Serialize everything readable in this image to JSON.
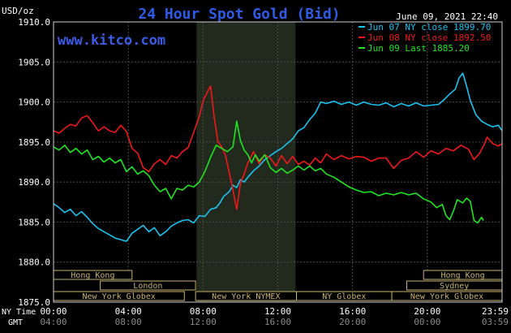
{
  "chart_data": {
    "type": "line",
    "title": "24 Hour Spot Gold (Bid)",
    "unit_label": "USD/oz",
    "date_label": "June 09, 2021 22:40",
    "site": "www.kitco.com",
    "ylim": [
      1875,
      1910
    ],
    "y_ticks": [
      "1910.0",
      "1905.0",
      "1900.0",
      "1895.0",
      "1890.0",
      "1885.0",
      "1880.0",
      "1875.0"
    ],
    "y_tick_values": [
      1910,
      1905,
      1900,
      1895,
      1890,
      1885,
      1880,
      1875
    ],
    "xlim": [
      0,
      24
    ],
    "x_ticks_ny": [
      "00:00",
      "04:00",
      "08:00",
      "12:00",
      "16:00",
      "20:00",
      "23:59"
    ],
    "x_ticks_gmt": [
      "04:00",
      "08:00",
      "12:00",
      "16:00",
      "20:00",
      "00:00",
      "03:59"
    ],
    "x_tick_values": [
      0,
      4,
      8,
      12,
      16,
      20,
      24
    ],
    "ny_time_label": "NY Time",
    "gmt_label": "GMT",
    "highlight_region": [
      7.65,
      12.95
    ],
    "grid": true,
    "legend_position": "top-right",
    "series": [
      {
        "name": "Jun 07 NY close 1899.70",
        "color": "#19c3f2",
        "points": [
          [
            0.0,
            1887.3
          ],
          [
            0.3,
            1886.8
          ],
          [
            0.6,
            1886.2
          ],
          [
            0.9,
            1886.6
          ],
          [
            1.2,
            1885.8
          ],
          [
            1.5,
            1886.3
          ],
          [
            1.8,
            1885.6
          ],
          [
            2.1,
            1884.8
          ],
          [
            2.4,
            1884.2
          ],
          [
            2.7,
            1883.8
          ],
          [
            3.0,
            1883.4
          ],
          [
            3.3,
            1883.0
          ],
          [
            3.6,
            1882.8
          ],
          [
            3.9,
            1882.6
          ],
          [
            4.2,
            1883.6
          ],
          [
            4.5,
            1884.1
          ],
          [
            4.8,
            1884.6
          ],
          [
            5.1,
            1883.8
          ],
          [
            5.4,
            1884.3
          ],
          [
            5.7,
            1883.3
          ],
          [
            6.0,
            1883.8
          ],
          [
            6.3,
            1884.5
          ],
          [
            6.6,
            1884.9
          ],
          [
            6.9,
            1885.2
          ],
          [
            7.2,
            1885.3
          ],
          [
            7.5,
            1884.9
          ],
          [
            7.8,
            1885.8
          ],
          [
            8.1,
            1885.7
          ],
          [
            8.4,
            1886.6
          ],
          [
            8.7,
            1886.8
          ],
          [
            8.9,
            1887.4
          ],
          [
            9.1,
            1888.2
          ],
          [
            9.4,
            1888.8
          ],
          [
            9.6,
            1889.6
          ],
          [
            9.8,
            1889.3
          ],
          [
            10.0,
            1890.3
          ],
          [
            10.2,
            1890.0
          ],
          [
            10.4,
            1890.6
          ],
          [
            10.7,
            1891.4
          ],
          [
            11.0,
            1892.0
          ],
          [
            11.3,
            1892.8
          ],
          [
            11.6,
            1893.3
          ],
          [
            11.9,
            1893.8
          ],
          [
            12.2,
            1894.2
          ],
          [
            12.5,
            1894.8
          ],
          [
            12.8,
            1895.4
          ],
          [
            13.1,
            1896.4
          ],
          [
            13.4,
            1896.8
          ],
          [
            13.7,
            1897.8
          ],
          [
            14.0,
            1898.6
          ],
          [
            14.3,
            1900.0
          ],
          [
            14.6,
            1899.8
          ],
          [
            15.0,
            1900.1
          ],
          [
            15.4,
            1899.7
          ],
          [
            15.8,
            1900.0
          ],
          [
            16.2,
            1899.6
          ],
          [
            16.6,
            1900.0
          ],
          [
            17.0,
            1899.7
          ],
          [
            17.4,
            1899.6
          ],
          [
            17.8,
            1899.9
          ],
          [
            18.2,
            1899.4
          ],
          [
            18.6,
            1899.8
          ],
          [
            19.0,
            1899.5
          ],
          [
            19.4,
            1899.9
          ],
          [
            19.8,
            1899.5
          ],
          [
            20.2,
            1899.6
          ],
          [
            20.6,
            1899.7
          ],
          [
            20.9,
            1900.3
          ],
          [
            21.2,
            1901.0
          ],
          [
            21.5,
            1901.6
          ],
          [
            21.7,
            1903.0
          ],
          [
            21.9,
            1903.6
          ],
          [
            22.1,
            1902.0
          ],
          [
            22.3,
            1900.2
          ],
          [
            22.6,
            1898.4
          ],
          [
            22.9,
            1897.6
          ],
          [
            23.2,
            1897.2
          ],
          [
            23.5,
            1896.9
          ],
          [
            23.8,
            1897.1
          ],
          [
            24.0,
            1896.4
          ]
        ]
      },
      {
        "name": "Jun 08 NY close 1892.50",
        "color": "#f01818",
        "points": [
          [
            0.0,
            1896.4
          ],
          [
            0.3,
            1896.1
          ],
          [
            0.6,
            1896.7
          ],
          [
            0.9,
            1897.2
          ],
          [
            1.2,
            1897.0
          ],
          [
            1.5,
            1898.0
          ],
          [
            1.8,
            1898.3
          ],
          [
            2.1,
            1897.4
          ],
          [
            2.4,
            1896.4
          ],
          [
            2.7,
            1896.9
          ],
          [
            3.0,
            1896.4
          ],
          [
            3.3,
            1896.2
          ],
          [
            3.6,
            1897.1
          ],
          [
            3.9,
            1896.3
          ],
          [
            4.2,
            1894.2
          ],
          [
            4.5,
            1893.6
          ],
          [
            4.8,
            1891.8
          ],
          [
            5.1,
            1891.3
          ],
          [
            5.4,
            1892.3
          ],
          [
            5.7,
            1892.8
          ],
          [
            6.0,
            1892.2
          ],
          [
            6.3,
            1893.3
          ],
          [
            6.6,
            1893.0
          ],
          [
            6.9,
            1893.8
          ],
          [
            7.2,
            1894.3
          ],
          [
            7.5,
            1896.2
          ],
          [
            7.8,
            1898.2
          ],
          [
            8.0,
            1900.1
          ],
          [
            8.2,
            1901.1
          ],
          [
            8.4,
            1902.0
          ],
          [
            8.6,
            1898.0
          ],
          [
            8.8,
            1895.0
          ],
          [
            9.0,
            1894.4
          ],
          [
            9.2,
            1893.3
          ],
          [
            9.4,
            1891.2
          ],
          [
            9.6,
            1889.0
          ],
          [
            9.8,
            1886.6
          ],
          [
            10.0,
            1889.8
          ],
          [
            10.2,
            1891.0
          ],
          [
            10.4,
            1892.4
          ],
          [
            10.7,
            1893.8
          ],
          [
            11.0,
            1892.3
          ],
          [
            11.3,
            1893.4
          ],
          [
            11.6,
            1893.0
          ],
          [
            11.9,
            1892.0
          ],
          [
            12.2,
            1893.3
          ],
          [
            12.5,
            1892.3
          ],
          [
            12.8,
            1893.2
          ],
          [
            13.1,
            1892.2
          ],
          [
            13.4,
            1892.6
          ],
          [
            13.7,
            1892.1
          ],
          [
            14.0,
            1893.0
          ],
          [
            14.3,
            1892.4
          ],
          [
            14.6,
            1893.5
          ],
          [
            15.0,
            1892.8
          ],
          [
            15.4,
            1893.3
          ],
          [
            15.8,
            1892.9
          ],
          [
            16.2,
            1893.2
          ],
          [
            16.6,
            1893.1
          ],
          [
            17.0,
            1892.6
          ],
          [
            17.4,
            1893.0
          ],
          [
            17.8,
            1893.0
          ],
          [
            18.2,
            1891.7
          ],
          [
            18.6,
            1892.7
          ],
          [
            19.0,
            1893.0
          ],
          [
            19.4,
            1893.8
          ],
          [
            19.8,
            1893.1
          ],
          [
            20.2,
            1893.9
          ],
          [
            20.6,
            1893.5
          ],
          [
            21.0,
            1894.2
          ],
          [
            21.4,
            1893.9
          ],
          [
            21.8,
            1894.6
          ],
          [
            22.2,
            1894.1
          ],
          [
            22.5,
            1892.8
          ],
          [
            22.8,
            1893.6
          ],
          [
            23.0,
            1894.5
          ],
          [
            23.2,
            1895.6
          ],
          [
            23.5,
            1894.8
          ],
          [
            23.8,
            1894.5
          ],
          [
            24.0,
            1894.8
          ]
        ]
      },
      {
        "name": "Jun 09 Last 1885.20",
        "color": "#1ee61e",
        "points": [
          [
            0.0,
            1894.4
          ],
          [
            0.3,
            1894.0
          ],
          [
            0.6,
            1894.6
          ],
          [
            0.9,
            1893.7
          ],
          [
            1.2,
            1894.2
          ],
          [
            1.5,
            1893.5
          ],
          [
            1.8,
            1894.0
          ],
          [
            2.1,
            1892.8
          ],
          [
            2.4,
            1893.2
          ],
          [
            2.7,
            1892.5
          ],
          [
            3.0,
            1893.0
          ],
          [
            3.3,
            1892.4
          ],
          [
            3.6,
            1892.8
          ],
          [
            3.9,
            1891.3
          ],
          [
            4.2,
            1891.9
          ],
          [
            4.5,
            1891.0
          ],
          [
            4.8,
            1891.4
          ],
          [
            5.1,
            1890.8
          ],
          [
            5.4,
            1889.6
          ],
          [
            5.7,
            1888.8
          ],
          [
            6.0,
            1889.2
          ],
          [
            6.3,
            1887.9
          ],
          [
            6.6,
            1889.2
          ],
          [
            6.9,
            1889.0
          ],
          [
            7.2,
            1889.6
          ],
          [
            7.5,
            1889.4
          ],
          [
            7.8,
            1890.0
          ],
          [
            8.1,
            1891.3
          ],
          [
            8.4,
            1893.1
          ],
          [
            8.7,
            1894.6
          ],
          [
            9.0,
            1894.2
          ],
          [
            9.3,
            1893.8
          ],
          [
            9.6,
            1894.4
          ],
          [
            9.8,
            1897.6
          ],
          [
            10.0,
            1895.2
          ],
          [
            10.2,
            1894.0
          ],
          [
            10.4,
            1893.4
          ],
          [
            10.6,
            1892.4
          ],
          [
            10.8,
            1893.4
          ],
          [
            11.0,
            1892.6
          ],
          [
            11.3,
            1893.4
          ],
          [
            11.6,
            1891.8
          ],
          [
            11.9,
            1891.2
          ],
          [
            12.2,
            1891.7
          ],
          [
            12.5,
            1891.1
          ],
          [
            12.8,
            1891.5
          ],
          [
            13.1,
            1892.0
          ],
          [
            13.4,
            1891.5
          ],
          [
            13.7,
            1892.0
          ],
          [
            14.0,
            1891.4
          ],
          [
            14.3,
            1891.7
          ],
          [
            14.6,
            1891.0
          ],
          [
            15.0,
            1890.6
          ],
          [
            15.4,
            1890.0
          ],
          [
            15.8,
            1889.4
          ],
          [
            16.2,
            1889.0
          ],
          [
            16.6,
            1888.7
          ],
          [
            17.0,
            1888.8
          ],
          [
            17.4,
            1888.3
          ],
          [
            17.8,
            1888.6
          ],
          [
            18.2,
            1888.4
          ],
          [
            18.6,
            1888.7
          ],
          [
            19.0,
            1888.4
          ],
          [
            19.4,
            1888.6
          ],
          [
            19.8,
            1887.9
          ],
          [
            20.2,
            1887.5
          ],
          [
            20.5,
            1886.8
          ],
          [
            20.8,
            1887.2
          ],
          [
            21.0,
            1885.8
          ],
          [
            21.2,
            1885.3
          ],
          [
            21.4,
            1886.4
          ],
          [
            21.6,
            1887.8
          ],
          [
            21.9,
            1887.4
          ],
          [
            22.1,
            1888.0
          ],
          [
            22.3,
            1887.6
          ],
          [
            22.5,
            1885.2
          ],
          [
            22.7,
            1884.9
          ],
          [
            22.9,
            1885.6
          ],
          [
            23.0,
            1885.2
          ]
        ]
      }
    ],
    "session_bars": [
      {
        "label": "Hong Kong",
        "start": 0.0,
        "end": 4.2,
        "row": 0
      },
      {
        "label": "London",
        "start": 2.5,
        "end": 7.6,
        "row": 1
      },
      {
        "label": "New York Globex",
        "start": 0.0,
        "end": 7.0,
        "row": 2
      },
      {
        "label": "New York NYMEX",
        "start": 7.6,
        "end": 13.0,
        "row": 2
      },
      {
        "label": "NY Globex",
        "start": 13.0,
        "end": 18.1,
        "row": 2
      },
      {
        "label": "Hong Kong",
        "start": 19.8,
        "end": 24.0,
        "row": 0
      },
      {
        "label": "Sydney",
        "start": 18.9,
        "end": 24.0,
        "row": 1
      },
      {
        "label": "New York Globex",
        "start": 18.1,
        "end": 24.0,
        "row": 2
      }
    ]
  }
}
